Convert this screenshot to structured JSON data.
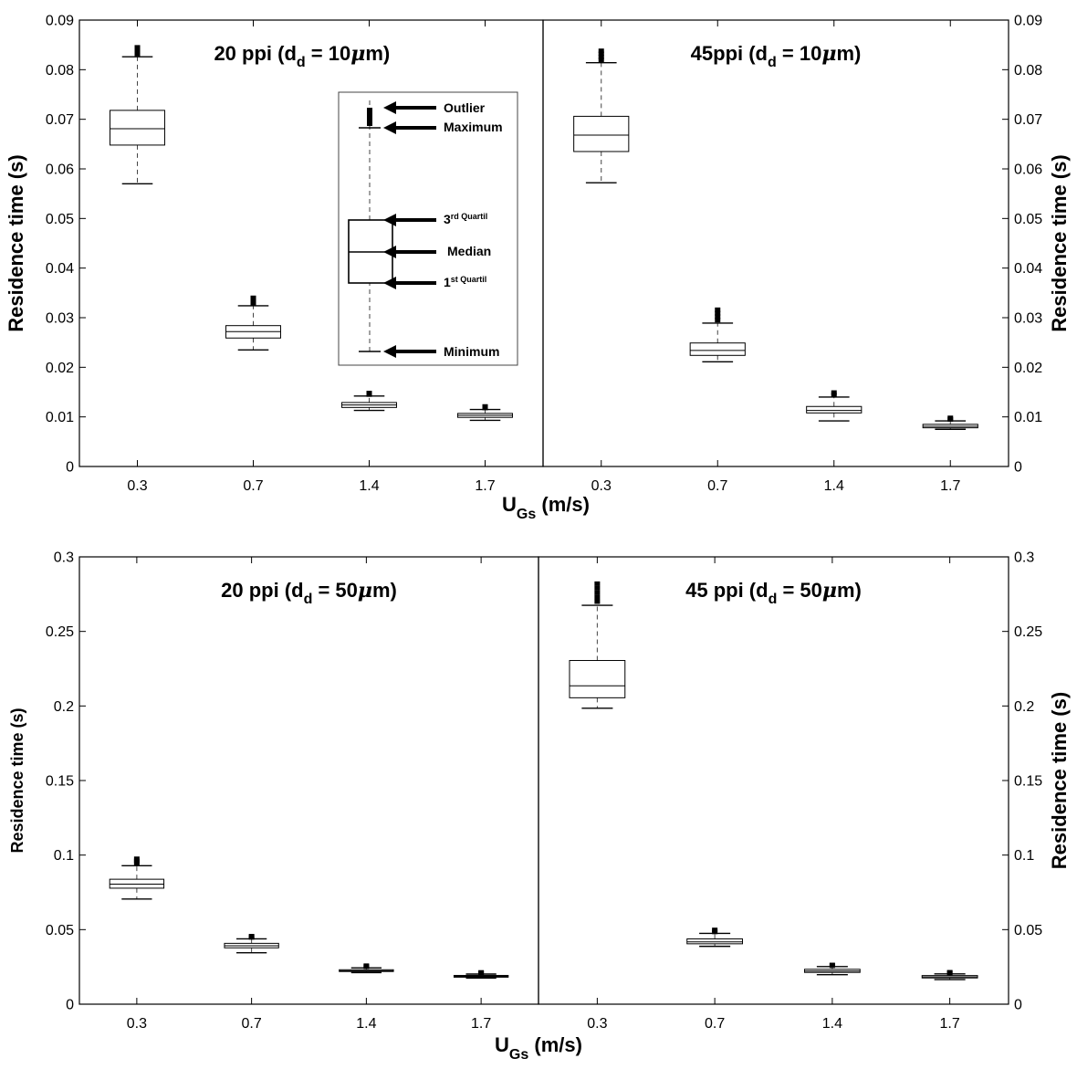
{
  "chart_data": [
    {
      "type": "box",
      "title": "20 ppi (d_d = 10μm)",
      "title_parts": {
        "pre": "20 ppi (d",
        "sub": "d",
        "post": " = 10",
        "mu": "μ",
        "tail": "m)"
      },
      "ylabel": "Residence time (s)",
      "ylabel_side": "left",
      "xlabel": "U_Gs (m/s)",
      "ylim": [
        0,
        0.09
      ],
      "yticks": [
        "0",
        "0.01",
        "0.02",
        "0.03",
        "0.04",
        "0.05",
        "0.06",
        "0.07",
        "0.08",
        "0.09"
      ],
      "categories": [
        "0.3",
        "0.7",
        "1.4",
        "1.7"
      ],
      "boxes": [
        {
          "category": "0.3",
          "min": 0.057,
          "q1": 0.0648,
          "median": 0.0681,
          "q3": 0.0718,
          "max": 0.0826,
          "outliers": [
            0.0832,
            0.0836,
            0.084,
            0.0845
          ]
        },
        {
          "category": "0.7",
          "min": 0.0235,
          "q1": 0.0259,
          "median": 0.0272,
          "q3": 0.0284,
          "max": 0.0324,
          "outliers": [
            0.0328,
            0.0332,
            0.0336,
            0.034
          ]
        },
        {
          "category": "1.4",
          "min": 0.0113,
          "q1": 0.0119,
          "median": 0.0124,
          "q3": 0.0129,
          "max": 0.0142,
          "outliers": [
            0.0145,
            0.0148
          ]
        },
        {
          "category": "1.7",
          "min": 0.0093,
          "q1": 0.0099,
          "median": 0.0103,
          "q3": 0.0107,
          "max": 0.0115,
          "outliers": [
            0.0118,
            0.0121
          ]
        }
      ],
      "legend": {
        "labels": {
          "outlier": "Outlier",
          "maximum": "Maximum",
          "q3": "rd Quartil",
          "q3_num": "3",
          "median": "Median",
          "q1": "st Quartil",
          "q1_num": "1",
          "minimum": "Minimum"
        }
      }
    },
    {
      "type": "box",
      "title": "45ppi (d_d = 10μm)",
      "title_parts": {
        "pre": "45ppi (d",
        "sub": "d",
        "post": " = 10",
        "mu": "μ",
        "tail": "m)"
      },
      "ylabel": "Residence time (s)",
      "ylabel_side": "right",
      "ylim": [
        0,
        0.09
      ],
      "yticks": [
        "0",
        "0.01",
        "0.02",
        "0.03",
        "0.04",
        "0.05",
        "0.06",
        "0.07",
        "0.08",
        "0.09"
      ],
      "categories": [
        "0.3",
        "0.7",
        "1.4",
        "1.7"
      ],
      "boxes": [
        {
          "category": "0.3",
          "min": 0.0572,
          "q1": 0.0635,
          "median": 0.0668,
          "q3": 0.0706,
          "max": 0.0814,
          "outliers": [
            0.082,
            0.0826,
            0.0832,
            0.0838
          ]
        },
        {
          "category": "0.7",
          "min": 0.0211,
          "q1": 0.0224,
          "median": 0.0234,
          "q3": 0.0249,
          "max": 0.0289,
          "outliers": [
            0.0295,
            0.0302,
            0.0309,
            0.0316
          ]
        },
        {
          "category": "1.4",
          "min": 0.0092,
          "q1": 0.0108,
          "median": 0.0113,
          "q3": 0.0121,
          "max": 0.014,
          "outliers": [
            0.0144,
            0.0149
          ]
        },
        {
          "category": "1.7",
          "min": 0.0075,
          "q1": 0.0078,
          "median": 0.0081,
          "q3": 0.0085,
          "max": 0.0092,
          "outliers": [
            0.0095,
            0.0098
          ]
        }
      ]
    },
    {
      "type": "box",
      "title": "20 ppi (d_d = 50μm)",
      "title_parts": {
        "pre": "20 ppi (d",
        "sub": "d",
        "post": " = 50",
        "mu": "μ",
        "tail": "m)"
      },
      "ylabel": "Residence time (s)",
      "ylabel_side": "left",
      "xlabel": "U_Gs (m/s)",
      "ylim": [
        0,
        0.3
      ],
      "yticks": [
        "0",
        "0.05",
        "0.1",
        "0.15",
        "0.2",
        "0.25",
        "0.3"
      ],
      "categories": [
        "0.3",
        "0.7",
        "1.4",
        "1.7"
      ],
      "boxes": [
        {
          "category": "0.3",
          "min": 0.0705,
          "q1": 0.0778,
          "median": 0.0805,
          "q3": 0.0838,
          "max": 0.0929,
          "outliers": [
            0.0945,
            0.096,
            0.0975
          ]
        },
        {
          "category": "0.7",
          "min": 0.0345,
          "q1": 0.0378,
          "median": 0.0392,
          "q3": 0.0408,
          "max": 0.0438,
          "outliers": [
            0.0448,
            0.0456
          ]
        },
        {
          "category": "1.4",
          "min": 0.0212,
          "q1": 0.0219,
          "median": 0.0224,
          "q3": 0.0231,
          "max": 0.0244,
          "outliers": [
            0.0252,
            0.0258
          ]
        },
        {
          "category": "1.7",
          "min": 0.0175,
          "q1": 0.0181,
          "median": 0.0187,
          "q3": 0.0193,
          "max": 0.0202,
          "outliers": [
            0.0208,
            0.0213
          ]
        }
      ]
    },
    {
      "type": "box",
      "title": "45 ppi (d_d = 50μm)",
      "title_parts": {
        "pre": "45 ppi (d",
        "sub": "d",
        "post": " = 50",
        "mu": "μ",
        "tail": "m)"
      },
      "ylabel": "Residence time (s)",
      "ylabel_side": "right",
      "ylim": [
        0,
        0.3
      ],
      "yticks": [
        "0",
        "0.05",
        "0.1",
        "0.15",
        "0.2",
        "0.25",
        "0.3"
      ],
      "categories": [
        "0.3",
        "0.7",
        "1.4",
        "1.7"
      ],
      "boxes": [
        {
          "category": "0.3",
          "min": 0.1985,
          "q1": 0.2055,
          "median": 0.2135,
          "q3": 0.2305,
          "max": 0.2675,
          "outliers": [
            0.27,
            0.273,
            0.276,
            0.279,
            0.282
          ]
        },
        {
          "category": "0.7",
          "min": 0.0388,
          "q1": 0.0405,
          "median": 0.0418,
          "q3": 0.0438,
          "max": 0.0475,
          "outliers": [
            0.0485,
            0.0498
          ]
        },
        {
          "category": "1.4",
          "min": 0.0198,
          "q1": 0.0213,
          "median": 0.0222,
          "q3": 0.0234,
          "max": 0.0252,
          "outliers": [
            0.0258,
            0.0263
          ]
        },
        {
          "category": "1.7",
          "min": 0.0165,
          "q1": 0.0176,
          "median": 0.0183,
          "q3": 0.0192,
          "max": 0.0203,
          "outliers": [
            0.0209,
            0.0214
          ]
        }
      ]
    }
  ],
  "xaxis": {
    "label_main": "U",
    "label_sub": "Gs",
    "label_tail": " (m/s)"
  }
}
